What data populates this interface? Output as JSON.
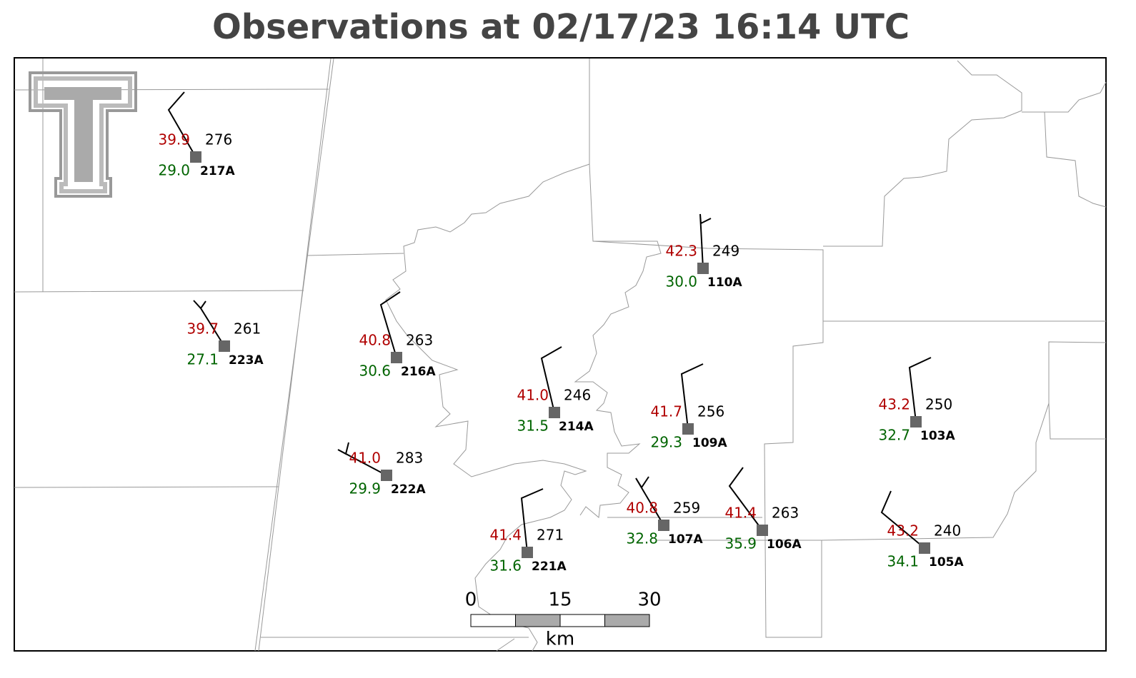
{
  "title": "Observations at 02/17/23 16:14 UTC",
  "stations": [
    {
      "id": "217A",
      "temperature": "39.9",
      "dewpoint": "29.0",
      "pressure": "276"
    },
    {
      "id": "223A",
      "temperature": "39.7",
      "dewpoint": "27.1",
      "pressure": "261"
    },
    {
      "id": "216A",
      "temperature": "40.8",
      "dewpoint": "30.6",
      "pressure": "263"
    },
    {
      "id": "222A",
      "temperature": "41.0",
      "dewpoint": "29.9",
      "pressure": "283"
    },
    {
      "id": "214A",
      "temperature": "41.0",
      "dewpoint": "31.5",
      "pressure": "246"
    },
    {
      "id": "221A",
      "temperature": "41.4",
      "dewpoint": "31.6",
      "pressure": "271"
    },
    {
      "id": "110A",
      "temperature": "42.3",
      "dewpoint": "30.0",
      "pressure": "249"
    },
    {
      "id": "109A",
      "temperature": "41.7",
      "dewpoint": "29.3",
      "pressure": "256"
    },
    {
      "id": "107A",
      "temperature": "40.8",
      "dewpoint": "32.8",
      "pressure": "259"
    },
    {
      "id": "106A",
      "temperature": "41.4",
      "dewpoint": "35.9",
      "pressure": "263"
    },
    {
      "id": "103A",
      "temperature": "43.2",
      "dewpoint": "32.7",
      "pressure": "250"
    },
    {
      "id": "105A",
      "temperature": "43.2",
      "dewpoint": "34.1",
      "pressure": "240"
    }
  ],
  "scale_bar": {
    "ticks": [
      0,
      15,
      30
    ],
    "unit": "km"
  }
}
